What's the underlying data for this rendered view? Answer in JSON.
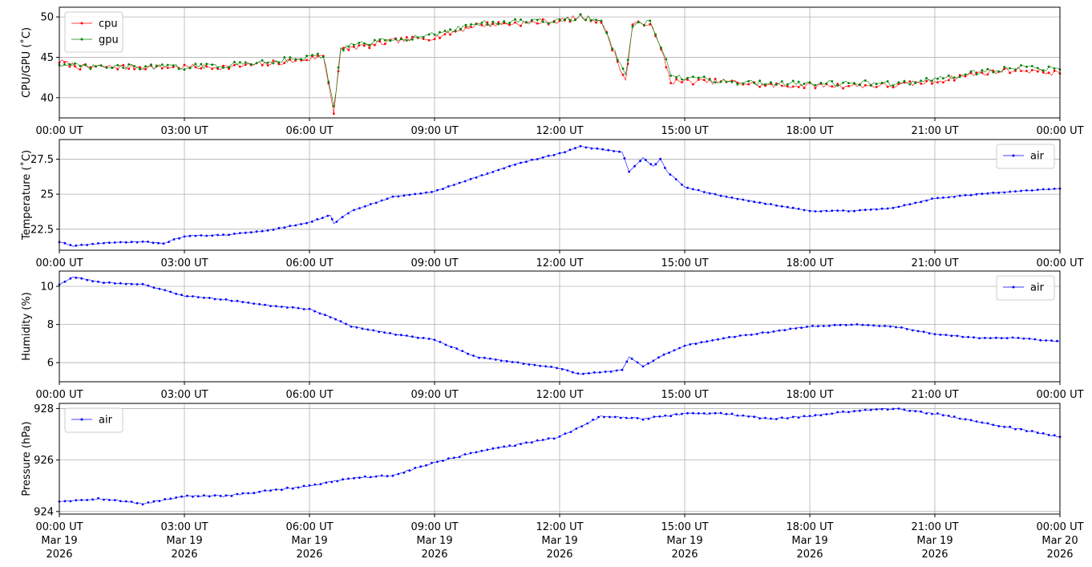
{
  "chart_data": [
    {
      "type": "line",
      "ylabel": "CPU/GPU (˚C)",
      "xlim": [
        "2026-03-19 00:00",
        "2026-03-20 00:00"
      ],
      "ylim": [
        37.5,
        51.2
      ],
      "yticks": [
        40,
        45,
        50
      ],
      "xtick_labels": [
        "00:00 UT",
        "03:00 UT",
        "06:00 UT",
        "09:00 UT",
        "12:00 UT",
        "15:00 UT",
        "18:00 UT",
        "21:00 UT",
        "00:00 UT"
      ],
      "grid": true,
      "legend": "upper-left",
      "x": [
        "2026-03-19 00:00",
        "2026-03-19 00:30",
        "2026-03-19 01:00",
        "2026-03-19 02:00",
        "2026-03-19 03:00",
        "2026-03-19 04:00",
        "2026-03-19 05:00",
        "2026-03-19 06:00",
        "2026-03-19 06:20",
        "2026-03-19 06:35",
        "2026-03-19 06:45",
        "2026-03-19 07:00",
        "2026-03-19 07:30",
        "2026-03-19 08:00",
        "2026-03-19 09:00",
        "2026-03-19 09:30",
        "2026-03-19 10:00",
        "2026-03-19 11:00",
        "2026-03-19 12:00",
        "2026-03-19 12:30",
        "2026-03-19 13:00",
        "2026-03-19 13:35",
        "2026-03-19 13:45",
        "2026-03-19 14:10",
        "2026-03-19 14:30",
        "2026-03-19 14:40",
        "2026-03-19 15:00",
        "2026-03-19 16:00",
        "2026-03-19 17:00",
        "2026-03-19 18:00",
        "2026-03-19 19:00",
        "2026-03-19 20:00",
        "2026-03-19 21:00",
        "2026-03-19 22:00",
        "2026-03-19 23:00",
        "2026-03-20 00:00"
      ],
      "series": [
        {
          "name": "cpu",
          "color": "#ff0000",
          "values": [
            44.5,
            43.8,
            43.8,
            43.8,
            43.8,
            43.8,
            44.2,
            44.8,
            45.2,
            38.3,
            45.8,
            46.2,
            46.5,
            47.0,
            47.5,
            48.2,
            49.0,
            49.2,
            49.5,
            50.0,
            49.5,
            42.0,
            49.0,
            49.3,
            45.0,
            42.0,
            42.0,
            42.0,
            41.5,
            41.5,
            41.5,
            41.5,
            42.0,
            43.0,
            43.5,
            43.0
          ]
        },
        {
          "name": "gpu",
          "color": "#008000",
          "values": [
            44.2,
            43.8,
            43.8,
            43.8,
            43.8,
            44.0,
            44.5,
            45.0,
            45.3,
            38.6,
            46.0,
            46.5,
            46.8,
            47.2,
            47.8,
            48.5,
            49.2,
            49.4,
            49.5,
            50.0,
            49.5,
            42.5,
            49.0,
            49.3,
            45.5,
            42.5,
            42.5,
            42.0,
            41.8,
            41.8,
            41.8,
            41.8,
            42.2,
            43.2,
            43.8,
            43.5
          ]
        }
      ]
    },
    {
      "type": "line",
      "ylabel": "Temperature (˚C)",
      "xlim": [
        "2026-03-19 00:00",
        "2026-03-20 00:00"
      ],
      "ylim": [
        21.0,
        28.9
      ],
      "yticks": [
        22.5,
        25.0,
        27.5
      ],
      "xtick_labels": [
        "00:00 UT",
        "03:00 UT",
        "06:00 UT",
        "09:00 UT",
        "12:00 UT",
        "15:00 UT",
        "18:00 UT",
        "21:00 UT",
        "00:00 UT"
      ],
      "grid": true,
      "legend": "upper-right",
      "x": [
        "2026-03-19 00:00",
        "2026-03-19 00:20",
        "2026-03-19 01:00",
        "2026-03-19 02:00",
        "2026-03-19 02:30",
        "2026-03-19 03:00",
        "2026-03-19 04:00",
        "2026-03-19 05:00",
        "2026-03-19 06:00",
        "2026-03-19 06:30",
        "2026-03-19 06:35",
        "2026-03-19 07:00",
        "2026-03-19 08:00",
        "2026-03-19 09:00",
        "2026-03-19 10:00",
        "2026-03-19 11:00",
        "2026-03-19 12:00",
        "2026-03-19 12:30",
        "2026-03-19 13:30",
        "2026-03-19 13:40",
        "2026-03-19 14:00",
        "2026-03-19 14:15",
        "2026-03-19 14:25",
        "2026-03-19 14:35",
        "2026-03-19 15:00",
        "2026-03-19 16:00",
        "2026-03-19 17:00",
        "2026-03-19 18:00",
        "2026-03-19 19:00",
        "2026-03-19 20:00",
        "2026-03-19 21:00",
        "2026-03-19 22:00",
        "2026-03-19 23:00",
        "2026-03-20 00:00"
      ],
      "series": [
        {
          "name": "air",
          "color": "#0000ff",
          "values": [
            21.6,
            21.3,
            21.5,
            21.6,
            21.5,
            22.0,
            22.1,
            22.4,
            23.0,
            23.5,
            22.9,
            23.8,
            24.8,
            25.2,
            26.2,
            27.2,
            27.9,
            28.4,
            28.0,
            26.6,
            27.6,
            27.0,
            27.5,
            26.6,
            25.5,
            24.8,
            24.3,
            23.8,
            23.8,
            24.0,
            24.7,
            25.0,
            25.2,
            25.4
          ]
        }
      ]
    },
    {
      "type": "line",
      "ylabel": "Humidity (%)",
      "xlim": [
        "2026-03-19 00:00",
        "2026-03-20 00:00"
      ],
      "ylim": [
        5.0,
        10.8
      ],
      "yticks": [
        6,
        8,
        10
      ],
      "xtick_labels": [
        "00:00 UT",
        "03:00 UT",
        "06:00 UT",
        "09:00 UT",
        "12:00 UT",
        "15:00 UT",
        "18:00 UT",
        "21:00 UT",
        "00:00 UT"
      ],
      "grid": true,
      "legend": "upper-right",
      "x": [
        "2026-03-19 00:00",
        "2026-03-19 00:20",
        "2026-03-19 01:00",
        "2026-03-19 02:00",
        "2026-03-19 03:00",
        "2026-03-19 04:00",
        "2026-03-19 05:00",
        "2026-03-19 06:00",
        "2026-03-19 06:30",
        "2026-03-19 07:00",
        "2026-03-19 08:00",
        "2026-03-19 09:00",
        "2026-03-19 10:00",
        "2026-03-19 11:00",
        "2026-03-19 12:00",
        "2026-03-19 12:30",
        "2026-03-19 13:30",
        "2026-03-19 13:40",
        "2026-03-19 14:00",
        "2026-03-19 14:30",
        "2026-03-19 15:00",
        "2026-03-19 16:00",
        "2026-03-19 17:00",
        "2026-03-19 18:00",
        "2026-03-19 19:00",
        "2026-03-19 20:00",
        "2026-03-19 21:00",
        "2026-03-19 22:00",
        "2026-03-19 23:00",
        "2026-03-20 00:00"
      ],
      "series": [
        {
          "name": "air",
          "color": "#0000ff",
          "values": [
            10.1,
            10.5,
            10.2,
            10.1,
            9.5,
            9.3,
            9.0,
            8.8,
            8.4,
            7.9,
            7.5,
            7.2,
            6.3,
            6.0,
            5.7,
            5.4,
            5.6,
            6.3,
            5.8,
            6.4,
            6.9,
            7.3,
            7.6,
            7.9,
            8.0,
            7.9,
            7.5,
            7.3,
            7.3,
            7.1
          ]
        }
      ]
    },
    {
      "type": "line",
      "ylabel": "Pressure (hPa)",
      "xlim": [
        "2026-03-19 00:00",
        "2026-03-20 00:00"
      ],
      "ylim": [
        923.9,
        928.2
      ],
      "yticks": [
        924,
        926,
        928
      ],
      "xtick_labels": [
        "00:00 UT\nMar 19\n2026",
        "03:00 UT\nMar 19\n2026",
        "06:00 UT\nMar 19\n2026",
        "09:00 UT\nMar 19\n2026",
        "12:00 UT\nMar 19\n2026",
        "15:00 UT\nMar 19\n2026",
        "18:00 UT\nMar 19\n2026",
        "21:00 UT\nMar 19\n2026",
        "00:00 UT\nMar 20\n2026"
      ],
      "grid": true,
      "legend": "upper-left",
      "x": [
        "2026-03-19 00:00",
        "2026-03-19 01:00",
        "2026-03-19 02:00",
        "2026-03-19 03:00",
        "2026-03-19 04:00",
        "2026-03-19 05:00",
        "2026-03-19 06:00",
        "2026-03-19 07:00",
        "2026-03-19 08:00",
        "2026-03-19 09:00",
        "2026-03-19 10:00",
        "2026-03-19 11:00",
        "2026-03-19 12:00",
        "2026-03-19 13:00",
        "2026-03-19 14:00",
        "2026-03-19 15:00",
        "2026-03-19 16:00",
        "2026-03-19 17:00",
        "2026-03-19 18:00",
        "2026-03-19 19:00",
        "2026-03-19 20:00",
        "2026-03-19 21:00",
        "2026-03-19 22:00",
        "2026-03-19 23:00",
        "2026-03-20 00:00"
      ],
      "series": [
        {
          "name": "air",
          "color": "#0000ff",
          "values": [
            924.4,
            924.5,
            924.3,
            924.6,
            924.6,
            924.8,
            925.0,
            925.3,
            925.4,
            925.9,
            926.3,
            926.6,
            926.9,
            927.7,
            927.6,
            927.8,
            927.8,
            927.6,
            927.7,
            927.9,
            928.0,
            927.8,
            927.5,
            927.2,
            926.9
          ]
        }
      ]
    }
  ]
}
